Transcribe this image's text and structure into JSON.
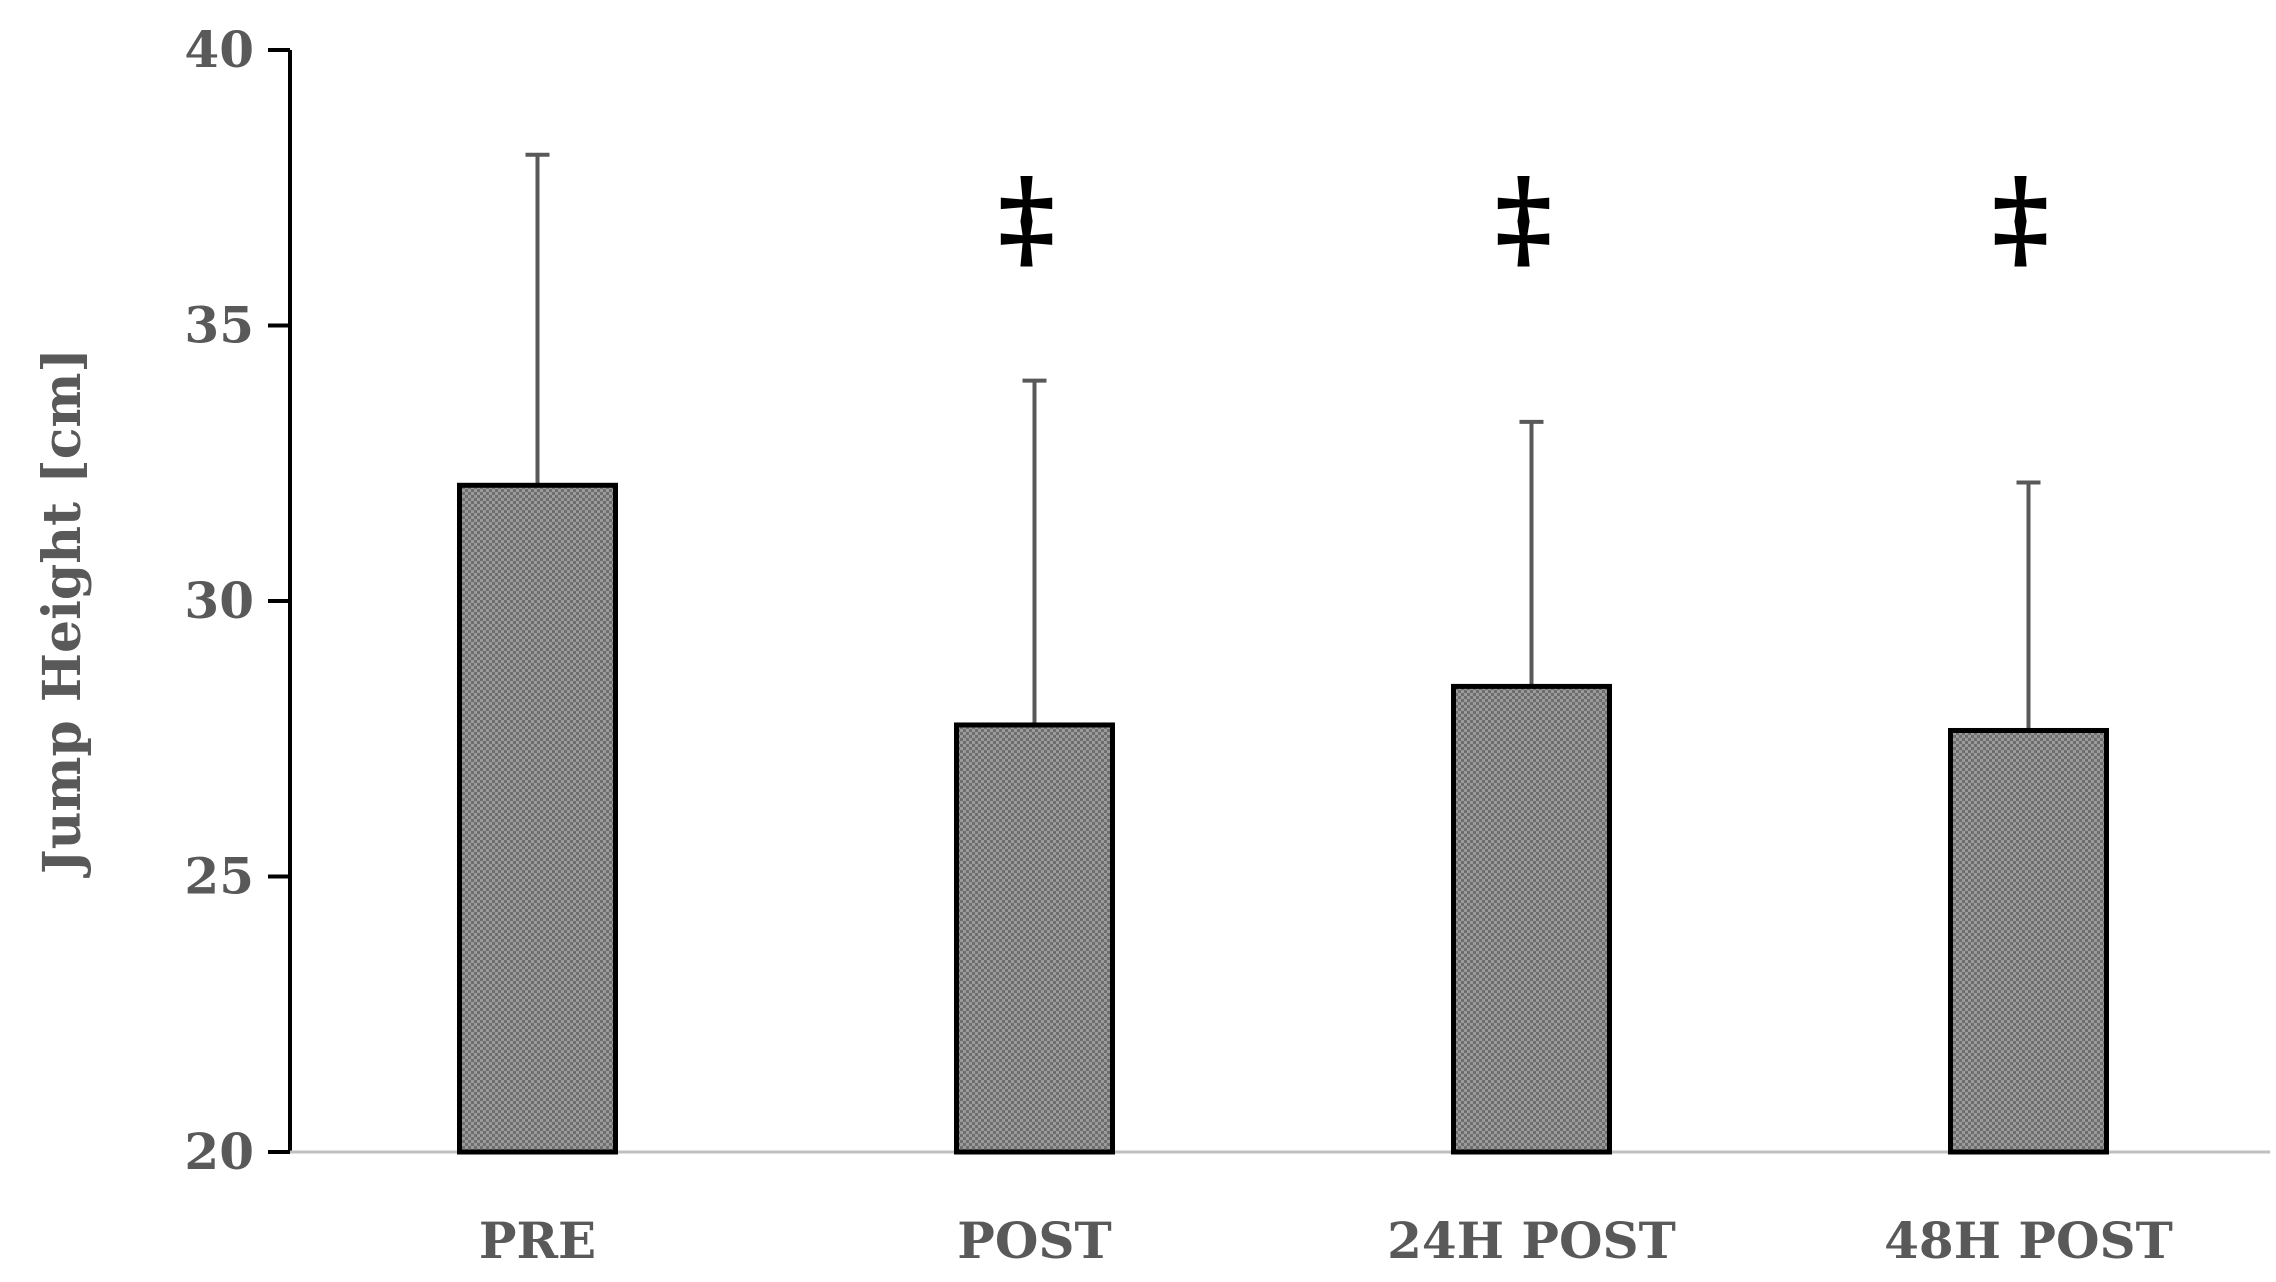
{
  "chart_data": {
    "type": "bar",
    "categories": [
      "PRE",
      "POST",
      "24H POST",
      "48H POST"
    ],
    "values": [
      32.1,
      27.75,
      28.45,
      27.65
    ],
    "error_upper": [
      38.1,
      34.0,
      33.25,
      32.15
    ],
    "significance_marks": [
      "",
      "‡",
      "‡",
      "‡"
    ],
    "ylabel": "Jump Height [cm]",
    "xlabel": "",
    "ylim": [
      20,
      40
    ],
    "yticks": [
      20,
      25,
      30,
      35,
      40
    ],
    "grid": false,
    "legend": "none",
    "colors": {
      "bar_fill": "#9a9a9a",
      "bar_pattern_dot": "#6e6e6e",
      "bar_stroke": "#000000",
      "error_bar": "#595959",
      "axis": "#000000",
      "baseline": "#bfbfbf",
      "text": "#595959"
    }
  }
}
